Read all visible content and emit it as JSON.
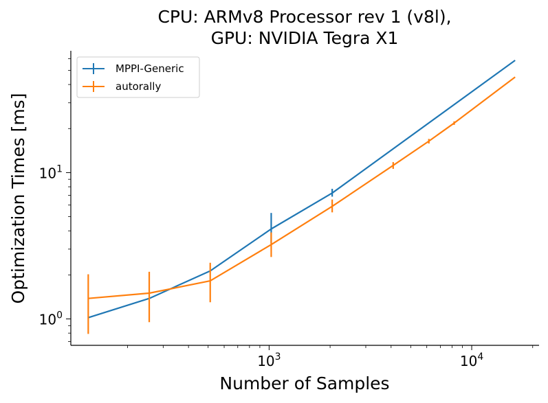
{
  "chart_data": {
    "type": "line",
    "title_lines": [
      "CPU: ARMv8 Processor rev 1 (v8l),",
      "GPU: NVIDIA Tegra X1"
    ],
    "xlabel": "Number of Samples",
    "ylabel": "Optimization Times [ms]",
    "xscale": "log",
    "yscale": "log",
    "xlim": [
      105,
      21500
    ],
    "ylim": [
      0.66,
      68
    ],
    "x_ticks": [
      {
        "value": 1000,
        "base": "10",
        "exp": "3"
      },
      {
        "value": 10000,
        "base": "10",
        "exp": "4"
      }
    ],
    "y_ticks": [
      {
        "value": 1,
        "base": "10",
        "exp": "0"
      },
      {
        "value": 10,
        "base": "10",
        "exp": "1"
      }
    ],
    "legend_position": "top-left",
    "series": [
      {
        "name": "MPPI-Generic",
        "color": "#1f77b4",
        "x": [
          128,
          256,
          512,
          1024,
          2048,
          16384
        ],
        "y": [
          1.02,
          1.38,
          2.13,
          4.12,
          7.25,
          58.5
        ],
        "err_low": [
          null,
          null,
          null,
          3.3,
          6.85,
          null
        ],
        "err_high": [
          null,
          null,
          null,
          5.3,
          7.75,
          null
        ]
      },
      {
        "name": "autorally",
        "color": "#ff7f0e",
        "x": [
          128,
          256,
          512,
          1024,
          2048,
          4096,
          6144,
          8192,
          16384
        ],
        "y": [
          1.38,
          1.5,
          1.82,
          3.22,
          5.88,
          11.2,
          16.4,
          21.8,
          45.0
        ],
        "err_low": [
          0.79,
          0.95,
          1.3,
          2.65,
          5.35,
          10.6,
          15.8,
          21.2,
          null
        ],
        "err_high": [
          2.02,
          2.1,
          2.42,
          3.9,
          6.55,
          11.8,
          17.0,
          22.4,
          null
        ]
      }
    ]
  }
}
